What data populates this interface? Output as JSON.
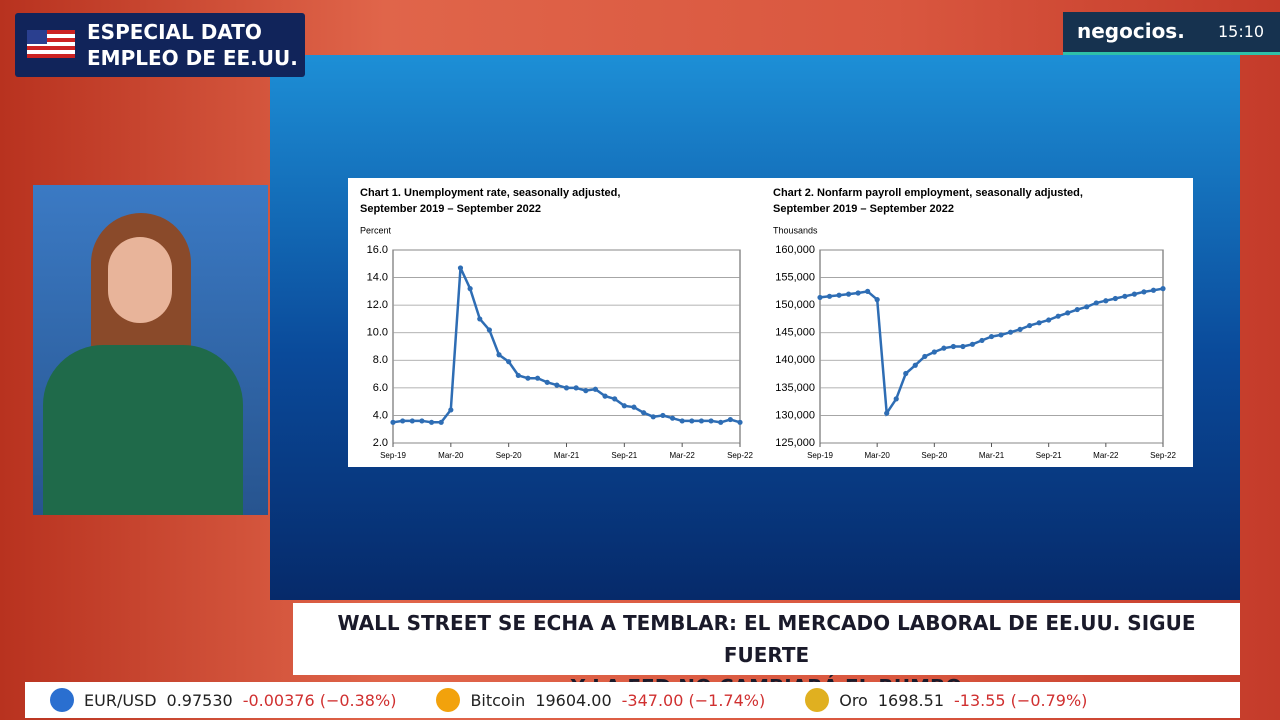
{
  "header": {
    "line1": "ESPECIAL DATO",
    "line2": "EMPLEO DE EE.UU."
  },
  "brand": {
    "name": "negocios.",
    "time": "15:10"
  },
  "headline": {
    "line1": "WALL STREET SE ECHA A TEMBLAR: EL MERCADO LABORAL DE EE.UU. SIGUE FUERTE",
    "line2": "Y LA FED NO CAMBIARÁ EL RUMBO"
  },
  "ticker": [
    {
      "name": "EUR/USD",
      "price": "0.97530",
      "change": "-0.00376 (−0.38%)"
    },
    {
      "name": "Bitcoin",
      "price": "19604.00",
      "change": "-347.00 (−1.74%)"
    },
    {
      "name": "Oro",
      "price": "1698.51",
      "change": "-13.55 (−0.79%)"
    }
  ],
  "chart_data": [
    {
      "type": "line",
      "title": "Chart 1. Unemployment rate, seasonally adjusted,",
      "subtitle": "September 2019 – September 2022",
      "ylabel": "Percent",
      "color": "#2e6db4",
      "grid": true,
      "categories": [
        "Sep-19",
        null,
        null,
        null,
        null,
        null,
        "Mar-20",
        null,
        null,
        null,
        null,
        null,
        "Sep-20",
        null,
        null,
        null,
        null,
        null,
        "Mar-21",
        null,
        null,
        null,
        null,
        null,
        "Sep-21",
        null,
        null,
        null,
        null,
        null,
        "Mar-22",
        null,
        null,
        null,
        null,
        null,
        "Sep-22"
      ],
      "values": [
        3.5,
        3.6,
        3.6,
        3.6,
        3.5,
        3.5,
        4.4,
        14.7,
        13.2,
        11.0,
        10.2,
        8.4,
        7.9,
        6.9,
        6.7,
        6.7,
        6.4,
        6.2,
        6.0,
        6.0,
        5.8,
        5.9,
        5.4,
        5.2,
        4.7,
        4.6,
        4.2,
        3.9,
        4.0,
        3.8,
        3.6,
        3.6,
        3.6,
        3.6,
        3.5,
        3.7,
        3.5
      ],
      "ylim": [
        2,
        16
      ],
      "yticks": [
        {
          "value": 2,
          "label": "2.0"
        },
        {
          "value": 4,
          "label": "4.0"
        },
        {
          "value": 6,
          "label": "6.0"
        },
        {
          "value": 8,
          "label": "8.0"
        },
        {
          "value": 10,
          "label": "10.0"
        },
        {
          "value": 12,
          "label": "12.0"
        },
        {
          "value": 14,
          "label": "14.0"
        },
        {
          "value": 16,
          "label": "16.0"
        }
      ]
    },
    {
      "type": "line",
      "title": "Chart 2. Nonfarm payroll employment, seasonally adjusted,",
      "subtitle": "September 2019 – September 2022",
      "ylabel": "Thousands",
      "color": "#2e6db4",
      "grid": true,
      "categories": [
        "Sep-19",
        null,
        null,
        null,
        null,
        null,
        "Mar-20",
        null,
        null,
        null,
        null,
        null,
        "Sep-20",
        null,
        null,
        null,
        null,
        null,
        "Mar-21",
        null,
        null,
        null,
        null,
        null,
        "Sep-21",
        null,
        null,
        null,
        null,
        null,
        "Mar-22",
        null,
        null,
        null,
        null,
        null,
        "Sep-22"
      ],
      "values": [
        151400,
        151600,
        151800,
        152000,
        152200,
        152500,
        151000,
        130400,
        133000,
        137600,
        139100,
        140700,
        141500,
        142200,
        142500,
        142500,
        142900,
        143600,
        144300,
        144600,
        145100,
        145600,
        146300,
        146800,
        147300,
        148000,
        148600,
        149200,
        149700,
        150400,
        150800,
        151200,
        151600,
        152000,
        152400,
        152700,
        153000
      ],
      "ylim": [
        125000,
        160000
      ],
      "yticks": [
        {
          "value": 125000,
          "label": "125,000"
        },
        {
          "value": 130000,
          "label": "130,000"
        },
        {
          "value": 135000,
          "label": "135,000"
        },
        {
          "value": 140000,
          "label": "140,000"
        },
        {
          "value": 145000,
          "label": "145,000"
        },
        {
          "value": 150000,
          "label": "150,000"
        },
        {
          "value": 155000,
          "label": "155,000"
        },
        {
          "value": 160000,
          "label": "160,000"
        }
      ]
    }
  ]
}
